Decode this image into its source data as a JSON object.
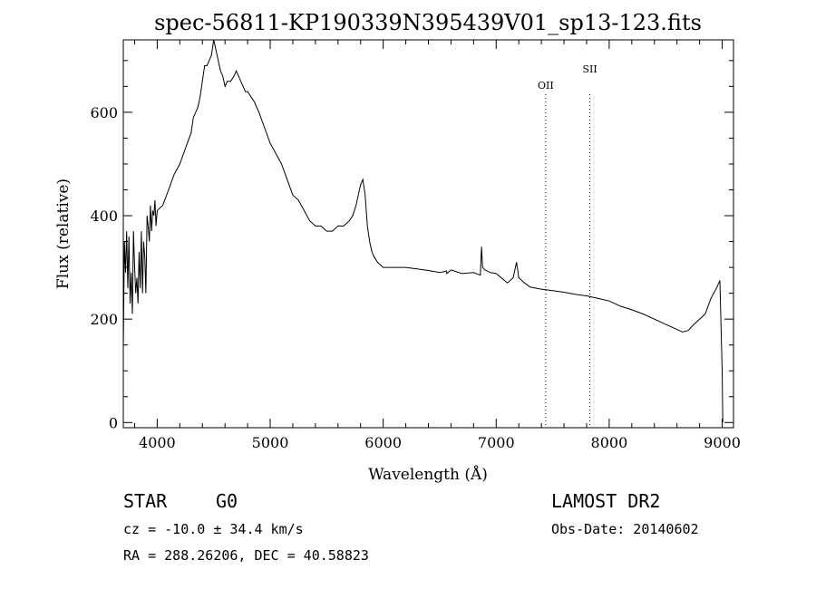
{
  "chart_data": {
    "type": "line",
    "title": "spec-56811-KP190339N395439V01_sp13-123.fits",
    "xlabel": "Wavelength (Å)",
    "ylabel": "Flux (relative)",
    "xlim": [
      3700,
      9100
    ],
    "ylim": [
      -10,
      740
    ],
    "xticks": [
      4000,
      5000,
      6000,
      7000,
      8000,
      9000
    ],
    "yticks": [
      0,
      200,
      400,
      600
    ],
    "grid": false,
    "series": [
      {
        "x": [
          3700,
          3710,
          3720,
          3730,
          3740,
          3750,
          3760,
          3770,
          3780,
          3790,
          3800,
          3810,
          3820,
          3830,
          3840,
          3850,
          3860,
          3870,
          3880,
          3890,
          3900,
          3910,
          3920,
          3930,
          3940,
          3950,
          3960,
          3970,
          3980,
          3990,
          4000,
          4050,
          4100,
          4150,
          4200,
          4250,
          4300,
          4320,
          4340,
          4360,
          4380,
          4400,
          4420,
          4440,
          4460,
          4480,
          4500,
          4520,
          4540,
          4560,
          4580,
          4600,
          4620,
          4650,
          4680,
          4700,
          4720,
          4740,
          4760,
          4780,
          4800,
          4830,
          4860,
          4900,
          4950,
          5000,
          5050,
          5100,
          5150,
          5200,
          5250,
          5300,
          5350,
          5400,
          5450,
          5500,
          5550,
          5600,
          5650,
          5700,
          5730,
          5760,
          5780,
          5800,
          5820,
          5840,
          5860,
          5880,
          5900,
          5920,
          5950,
          6000,
          6050,
          6100,
          6150,
          6200,
          6300,
          6400,
          6500,
          6560,
          6563,
          6600,
          6700,
          6800,
          6860,
          6870,
          6880,
          6900,
          6950,
          7000,
          7100,
          7150,
          7180,
          7200,
          7250,
          7300,
          7400,
          7500,
          7600,
          7700,
          7800,
          7900,
          8000,
          8100,
          8200,
          8300,
          8400,
          8500,
          8600,
          8650,
          8700,
          8750,
          8800,
          8850,
          8900,
          8950,
          8980,
          9000,
          9005
        ],
        "y": [
          140,
          350,
          290,
          370,
          260,
          360,
          230,
          290,
          210,
          370,
          300,
          250,
          280,
          230,
          330,
          260,
          370,
          250,
          350,
          320,
          250,
          400,
          380,
          350,
          420,
          370,
          410,
          400,
          430,
          380,
          410,
          420,
          450,
          480,
          500,
          530,
          560,
          590,
          600,
          610,
          630,
          660,
          690,
          690,
          700,
          710,
          740,
          720,
          700,
          680,
          670,
          650,
          660,
          660,
          670,
          680,
          670,
          660,
          650,
          640,
          640,
          630,
          620,
          600,
          570,
          540,
          520,
          500,
          470,
          440,
          430,
          410,
          390,
          380,
          380,
          370,
          370,
          380,
          380,
          390,
          400,
          420,
          440,
          460,
          470,
          440,
          380,
          350,
          330,
          320,
          310,
          300,
          300,
          300,
          300,
          300,
          297,
          294,
          290,
          293,
          288,
          295,
          288,
          290,
          285,
          340,
          300,
          295,
          290,
          288,
          270,
          280,
          310,
          280,
          270,
          262,
          258,
          255,
          252,
          248,
          245,
          240,
          235,
          225,
          218,
          210,
          200,
          190,
          180,
          175,
          178,
          190,
          200,
          210,
          240,
          260,
          275,
          100,
          0
        ]
      }
    ],
    "annotations": [
      {
        "label": "OII",
        "x": 7438
      },
      {
        "label": "SII",
        "x": 7829
      }
    ]
  },
  "info": {
    "object_class": "STAR",
    "subclass": "G0",
    "survey": "LAMOST DR2",
    "redshift": "cz = -10.0 ± 34.4 km/s",
    "obs_date": "Obs-Date: 20140602",
    "coords": "RA = 288.26206, DEC =  40.58823"
  }
}
